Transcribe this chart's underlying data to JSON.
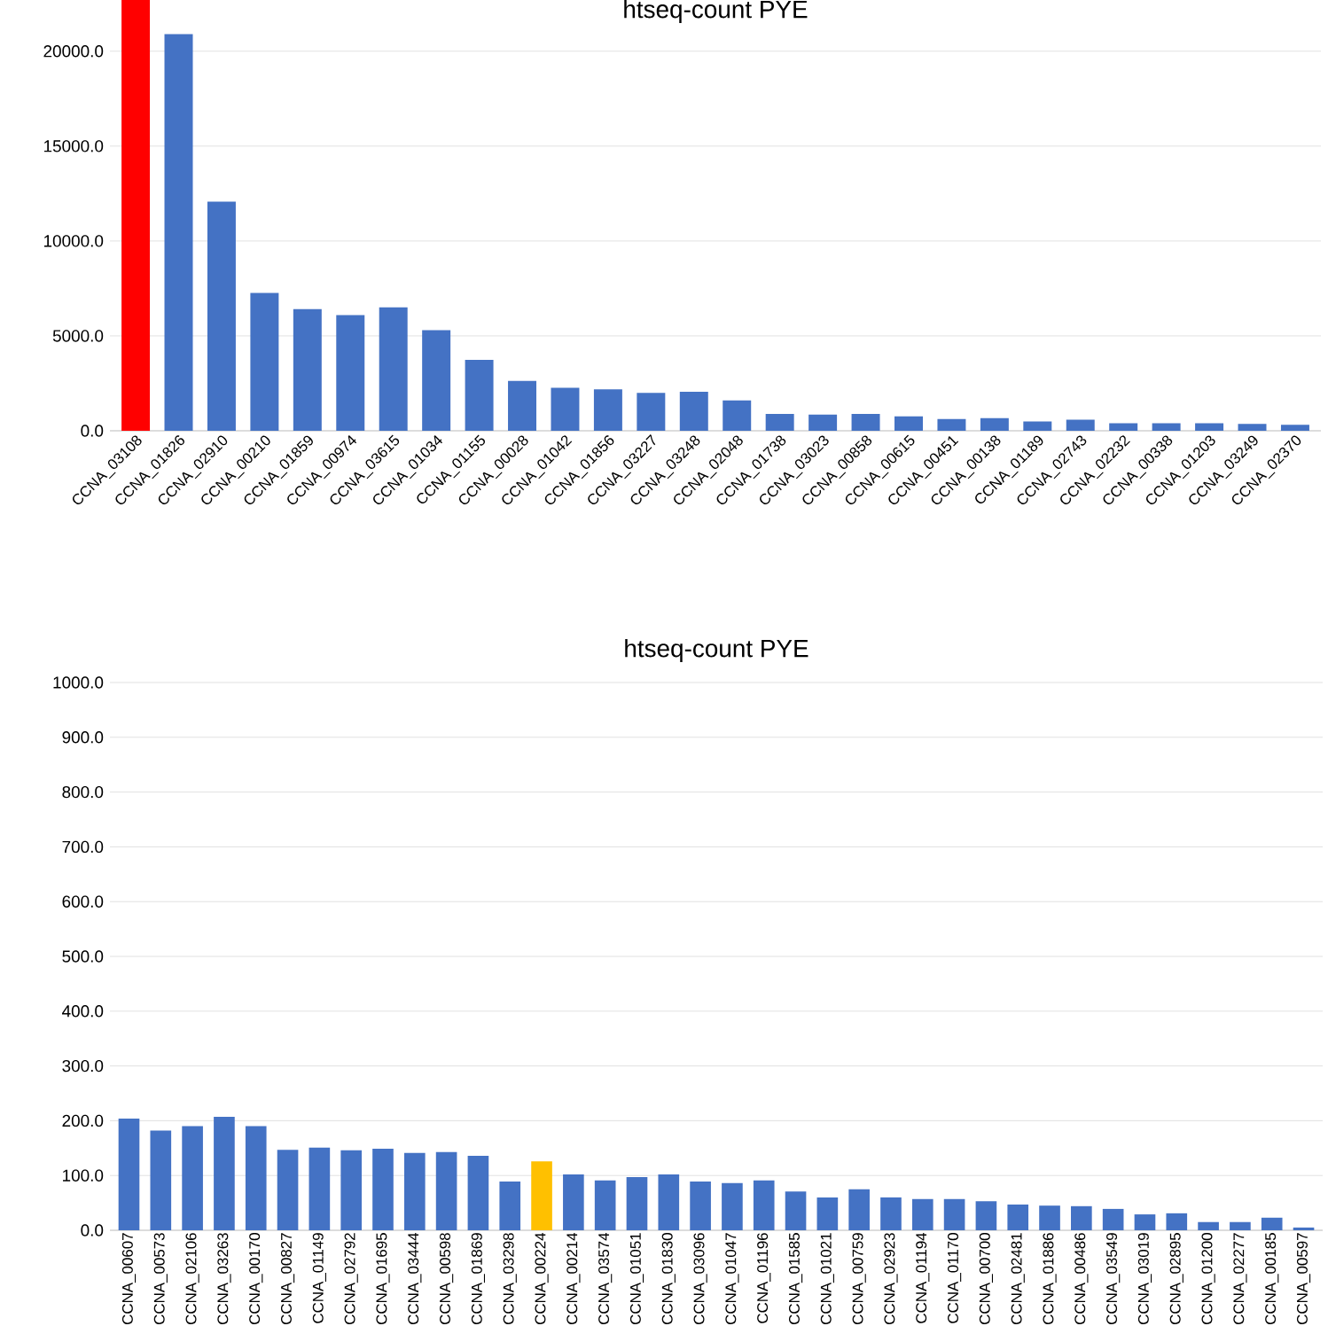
{
  "chart_data": [
    {
      "type": "bar",
      "title": "htseq-count PYE",
      "categories": [
        "CCNA_03108",
        "CCNA_01826",
        "CCNA_02910",
        "CCNA_00210",
        "CCNA_01859",
        "CCNA_00974",
        "CCNA_03615",
        "CCNA_01034",
        "CCNA_01155",
        "CCNA_00028",
        "CCNA_01042",
        "CCNA_01856",
        "CCNA_03227",
        "CCNA_03248",
        "CCNA_02048",
        "CCNA_01738",
        "CCNA_03023",
        "CCNA_00858",
        "CCNA_00615",
        "CCNA_00451",
        "CCNA_00138",
        "CCNA_01189",
        "CCNA_02743",
        "CCNA_02232",
        "CCNA_00338",
        "CCNA_01203",
        "CCNA_03249",
        "CCNA_02370"
      ],
      "values": [
        22700,
        20900,
        12070,
        7260,
        6410,
        6100,
        6500,
        5300,
        3740,
        2630,
        2270,
        2180,
        2000,
        2050,
        1600,
        890,
        850,
        890,
        760,
        620,
        670,
        490,
        580,
        400,
        400,
        400,
        360,
        310
      ],
      "colors": [
        "#ff0000",
        "#4472c4",
        "#4472c4",
        "#4472c4",
        "#4472c4",
        "#4472c4",
        "#4472c4",
        "#4472c4",
        "#4472c4",
        "#4472c4",
        "#4472c4",
        "#4472c4",
        "#4472c4",
        "#4472c4",
        "#4472c4",
        "#4472c4",
        "#4472c4",
        "#4472c4",
        "#4472c4",
        "#4472c4",
        "#4472c4",
        "#4472c4",
        "#4472c4",
        "#4472c4",
        "#4472c4",
        "#4472c4",
        "#4472c4",
        "#4472c4"
      ],
      "ylim": [
        0,
        22700
      ],
      "yticks": [
        {
          "value": 0,
          "label": "0.0"
        },
        {
          "value": 5000,
          "label": "5000.0"
        },
        {
          "value": 10000,
          "label": "10000.0"
        },
        {
          "value": 15000,
          "label": "15000.0"
        },
        {
          "value": 20000,
          "label": "20000.0"
        }
      ],
      "grid": "y"
    },
    {
      "type": "bar",
      "title": "htseq-count PYE",
      "categories": [
        "CCNA_00607",
        "CCNA_00573",
        "CCNA_02106",
        "CCNA_03263",
        "CCNA_00170",
        "CCNA_00827",
        "CCNA_01149",
        "CCNA_02792",
        "CCNA_01695",
        "CCNA_03444",
        "CCNA_00598",
        "CCNA_01869",
        "CCNA_03298",
        "CCNA_00224",
        "CCNA_00214",
        "CCNA_03574",
        "CCNA_01051",
        "CCNA_01830",
        "CCNA_03096",
        "CCNA_01047",
        "CCNA_01196",
        "CCNA_01585",
        "CCNA_01021",
        "CCNA_00759",
        "CCNA_02923",
        "CCNA_01194",
        "CCNA_01170",
        "CCNA_00700",
        "CCNA_02481",
        "CCNA_01886",
        "CCNA_00486",
        "CCNA_03549",
        "CCNA_03019",
        "CCNA_02895",
        "CCNA_01200",
        "CCNA_02277",
        "CCNA_00185",
        "CCNA_00597"
      ],
      "values": [
        204,
        182,
        190,
        207,
        190,
        147,
        151,
        146,
        149,
        141,
        143,
        136,
        89,
        126,
        102,
        91,
        97,
        102,
        89,
        86,
        91,
        71,
        60,
        75,
        60,
        57,
        57,
        53,
        47,
        45,
        44,
        39,
        29,
        31,
        15,
        15,
        23,
        5
      ],
      "colors": [
        "#4472c4",
        "#4472c4",
        "#4472c4",
        "#4472c4",
        "#4472c4",
        "#4472c4",
        "#4472c4",
        "#4472c4",
        "#4472c4",
        "#4472c4",
        "#4472c4",
        "#4472c4",
        "#4472c4",
        "#ffc000",
        "#4472c4",
        "#4472c4",
        "#4472c4",
        "#4472c4",
        "#4472c4",
        "#4472c4",
        "#4472c4",
        "#4472c4",
        "#4472c4",
        "#4472c4",
        "#4472c4",
        "#4472c4",
        "#4472c4",
        "#4472c4",
        "#4472c4",
        "#4472c4",
        "#4472c4",
        "#4472c4",
        "#4472c4",
        "#4472c4",
        "#4472c4",
        "#4472c4",
        "#4472c4",
        "#4472c4"
      ],
      "ylim": [
        0,
        1000
      ],
      "yticks": [
        {
          "value": 0,
          "label": "0.0"
        },
        {
          "value": 100,
          "label": "100.0"
        },
        {
          "value": 200,
          "label": "200.0"
        },
        {
          "value": 300,
          "label": "300.0"
        },
        {
          "value": 400,
          "label": "400.0"
        },
        {
          "value": 500,
          "label": "500.0"
        },
        {
          "value": 600,
          "label": "600.0"
        },
        {
          "value": 700,
          "label": "700.0"
        },
        {
          "value": 800,
          "label": "800.0"
        },
        {
          "value": 900,
          "label": "900.0"
        },
        {
          "value": 1000,
          "label": "1000.0"
        }
      ],
      "grid": "y"
    }
  ]
}
